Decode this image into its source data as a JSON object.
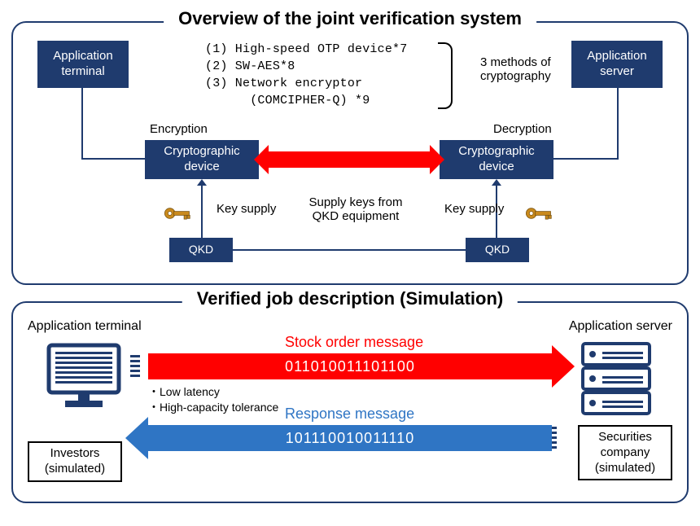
{
  "panel1": {
    "title": "Overview of the joint verification system",
    "app_terminal": "Application\nterminal",
    "app_server": "Application\nserver",
    "methods": {
      "m1": "(1) High-speed OTP device*7",
      "m2": "(2) SW-AES*8",
      "m3": "(3) Network encryptor",
      "m3b": "      (COMCIPHER-Q) *9"
    },
    "methods_tag": "3 methods of\ncryptography",
    "enc_label": "Encryption",
    "dec_label": "Decryption",
    "crypto_device": "Cryptographic\ndevice",
    "key_supply": "Key supply",
    "supply_text": "Supply keys from\nQKD equipment",
    "qkd": "QKD"
  },
  "panel2": {
    "title": "Verified job description (Simulation)",
    "app_terminal_cap": "Application terminal",
    "app_server_cap": "Application server",
    "stock_label": "Stock order message",
    "stock_bits": "011010011101100",
    "response_label": "Response message",
    "response_bits": "101110010011110",
    "bullet1": "・Low latency",
    "bullet2": "・High-capacity tolerance",
    "investors": "Investors\n(simulated)",
    "securities": "Securities\ncompany\n(simulated)"
  },
  "colors": {
    "navy": "#1f3b6e",
    "red": "#ff0000",
    "blue": "#2f75c4",
    "white": "#ffffff",
    "black": "#000000"
  }
}
